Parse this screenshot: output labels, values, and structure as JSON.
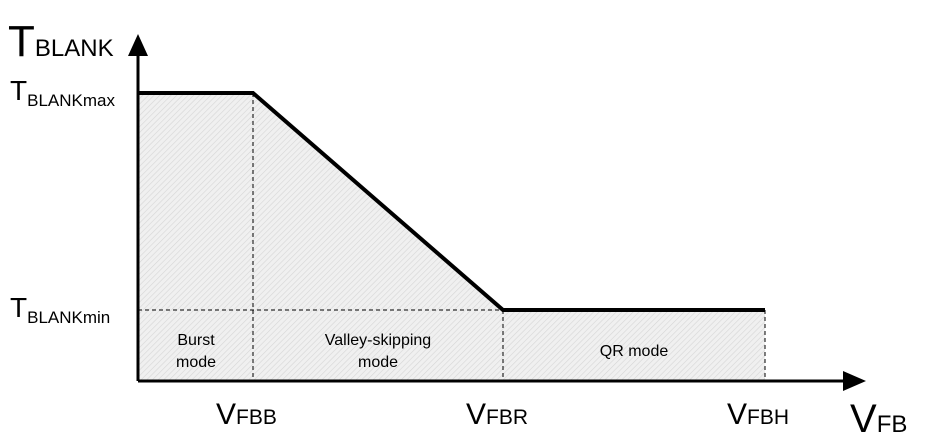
{
  "y_axis": {
    "main": "T",
    "sub": "BLANK"
  },
  "x_axis": {
    "main": "V",
    "sub": "FB"
  },
  "levels": [
    {
      "main": "T",
      "sub": "BLANKmax"
    },
    {
      "main": "T",
      "sub": "BLANKmin"
    }
  ],
  "thresholds": [
    {
      "main": "V",
      "sub": "FBB"
    },
    {
      "main": "V",
      "sub": "FBR"
    },
    {
      "main": "V",
      "sub": "FBH"
    }
  ],
  "regions": [
    {
      "lines": [
        "Burst",
        "mode"
      ]
    },
    {
      "lines": [
        "Valley-skipping",
        "mode"
      ]
    },
    {
      "lines": [
        "QR mode"
      ]
    }
  ]
}
